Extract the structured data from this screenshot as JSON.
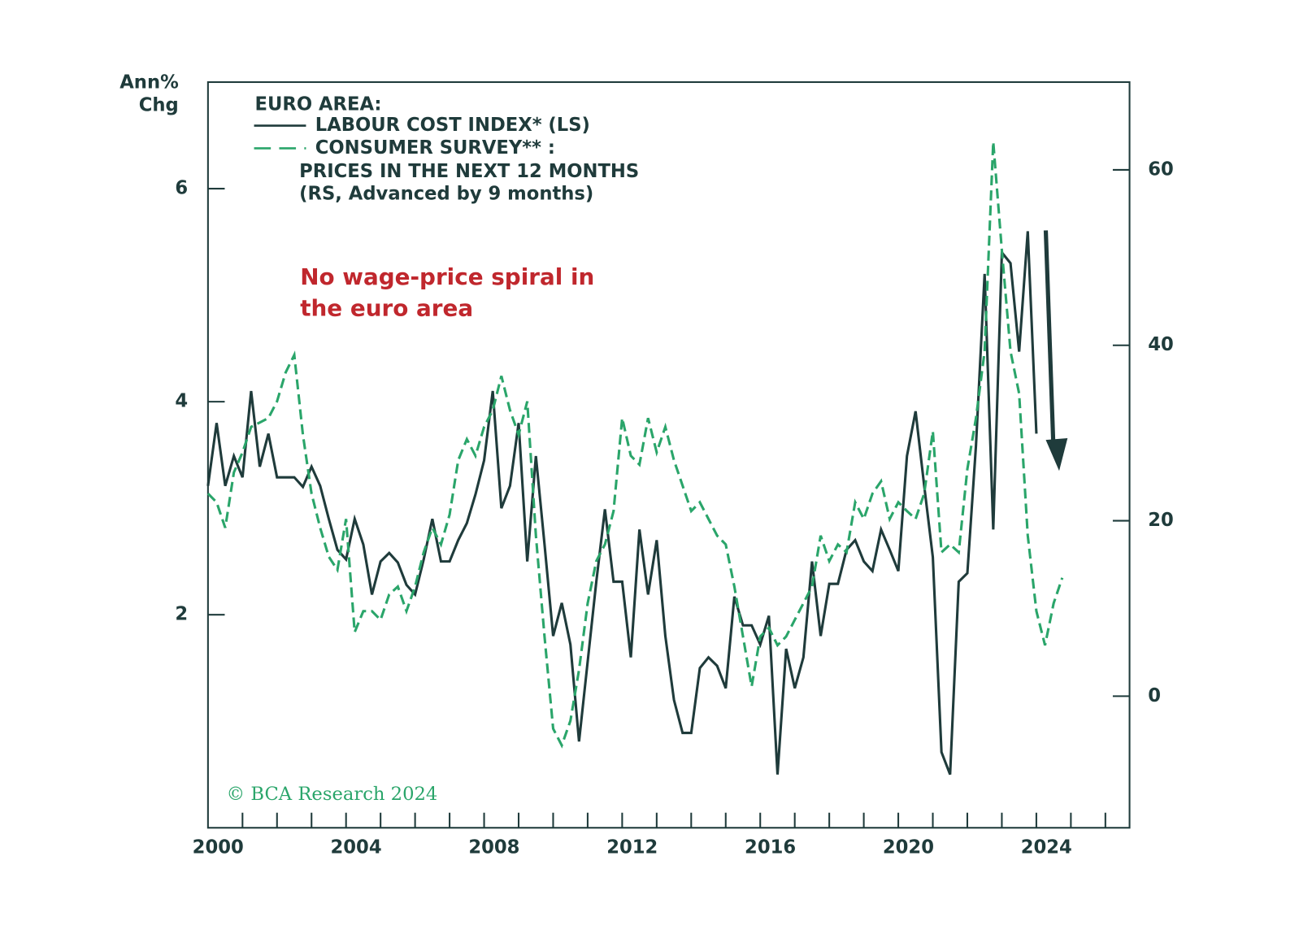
{
  "chart_data": {
    "type": "line",
    "y_label_lines": [
      "Ann%",
      "Chg"
    ],
    "legend_title": "EURO AREA:",
    "legend_extra_lines": [
      "PRICES IN THE NEXT 12 MONTHS",
      "(RS, Advanced by 9 months)"
    ],
    "annotation_lines": [
      "No wage-price spiral in",
      "the euro area"
    ],
    "source": "© BCA Research 2024",
    "xlim": [
      2000,
      2026.7
    ],
    "xticks": [
      2000,
      2004,
      2008,
      2012,
      2016,
      2020,
      2024
    ],
    "xminor_ticks": [
      2001,
      2002,
      2003,
      2004,
      2005,
      2006,
      2007,
      2008,
      2009,
      2010,
      2011,
      2012,
      2013,
      2014,
      2015,
      2016,
      2017,
      2018,
      2019,
      2020,
      2021,
      2022,
      2023,
      2024,
      2025,
      2026
    ],
    "ylim": [
      0,
      7
    ],
    "yticks": [
      2,
      4,
      6
    ],
    "y2lim": [
      -15,
      70
    ],
    "y2ticks": [
      0,
      20,
      40,
      60
    ],
    "series": [
      {
        "name": "LABOUR COST INDEX* (LS)",
        "color": "#1f3b3b",
        "line_style": "solid",
        "axis": "y",
        "x": [
          2000,
          2000.25,
          2000.5,
          2000.75,
          2001,
          2001.25,
          2001.5,
          2001.75,
          2002,
          2002.25,
          2002.5,
          2002.75,
          2003,
          2003.25,
          2003.5,
          2003.75,
          2004,
          2004.25,
          2004.5,
          2004.75,
          2005,
          2005.25,
          2005.5,
          2005.75,
          2006,
          2006.25,
          2006.5,
          2006.75,
          2007,
          2007.25,
          2007.5,
          2007.75,
          2008,
          2008.25,
          2008.5,
          2008.75,
          2009,
          2009.25,
          2009.5,
          2009.75,
          2010,
          2010.25,
          2010.5,
          2010.75,
          2011,
          2011.25,
          2011.5,
          2011.75,
          2012,
          2012.25,
          2012.5,
          2012.75,
          2013,
          2013.25,
          2013.5,
          2013.75,
          2014,
          2014.25,
          2014.5,
          2014.75,
          2015,
          2015.25,
          2015.5,
          2015.75,
          2016,
          2016.25,
          2016.5,
          2016.75,
          2017,
          2017.25,
          2017.5,
          2017.75,
          2018,
          2018.25,
          2018.5,
          2018.75,
          2019,
          2019.25,
          2019.5,
          2019.75,
          2020,
          2020.25,
          2020.5,
          2020.75,
          2021,
          2021.25,
          2021.5,
          2021.75,
          2022,
          2022.25,
          2022.5,
          2022.75,
          2023,
          2023.25,
          2023.5,
          2023.75,
          2024
        ],
        "values": [
          3.21,
          3.8,
          3.21,
          3.49,
          3.29,
          4.1,
          3.39,
          3.7,
          3.29,
          3.29,
          3.29,
          3.2,
          3.39,
          3.21,
          2.9,
          2.61,
          2.52,
          2.9,
          2.66,
          2.19,
          2.5,
          2.58,
          2.49,
          2.28,
          2.19,
          2.52,
          2.9,
          2.5,
          2.5,
          2.7,
          2.86,
          3.13,
          3.45,
          4.1,
          3.0,
          3.21,
          3.8,
          2.5,
          3.49,
          2.66,
          1.8,
          2.11,
          1.72,
          0.81,
          1.56,
          2.31,
          2.99,
          2.31,
          2.31,
          1.6,
          2.8,
          2.19,
          2.7,
          1.8,
          1.2,
          0.89,
          0.89,
          1.5,
          1.6,
          1.52,
          1.31,
          2.17,
          1.9,
          1.9,
          1.72,
          1.99,
          0.5,
          1.68,
          1.31,
          1.6,
          2.5,
          1.8,
          2.29,
          2.29,
          2.61,
          2.7,
          2.5,
          2.41,
          2.8,
          2.61,
          2.41,
          3.49,
          3.91,
          3.21,
          2.54,
          0.71,
          0.5,
          2.31,
          2.39,
          3.59,
          5.2,
          2.8,
          5.4,
          5.3,
          4.47,
          5.6,
          3.7
        ]
      },
      {
        "name": "CONSUMER SURVEY** :",
        "color": "#2aa56a",
        "line_style": "dashed",
        "axis": "y2",
        "x": [
          2000,
          2000.25,
          2000.5,
          2000.75,
          2001,
          2001.25,
          2001.5,
          2001.75,
          2002,
          2002.25,
          2002.5,
          2002.75,
          2003,
          2003.25,
          2003.5,
          2003.75,
          2004,
          2004.25,
          2004.5,
          2004.75,
          2005,
          2005.25,
          2005.5,
          2005.75,
          2006,
          2006.25,
          2006.5,
          2006.75,
          2007,
          2007.25,
          2007.5,
          2007.75,
          2008,
          2008.25,
          2008.5,
          2008.75,
          2009,
          2009.25,
          2009.5,
          2009.75,
          2010,
          2010.25,
          2010.5,
          2010.75,
          2011,
          2011.25,
          2011.5,
          2011.75,
          2012,
          2012.25,
          2012.5,
          2012.75,
          2013,
          2013.25,
          2013.5,
          2013.75,
          2014,
          2014.25,
          2014.5,
          2014.75,
          2015,
          2015.25,
          2015.5,
          2015.75,
          2016,
          2016.25,
          2016.5,
          2016.75,
          2017,
          2017.25,
          2017.5,
          2017.75,
          2018,
          2018.25,
          2018.5,
          2018.75,
          2019,
          2019.25,
          2019.5,
          2019.75,
          2020,
          2020.25,
          2020.5,
          2020.75,
          2021,
          2021.25,
          2021.5,
          2021.75,
          2022,
          2022.25,
          2022.5,
          2022.75,
          2023,
          2023.25,
          2023.5,
          2023.75,
          2024,
          2024.25,
          2024.5,
          2024.75
        ],
        "values": [
          23.1,
          22.1,
          19.2,
          25.5,
          27.8,
          30.7,
          31.2,
          31.7,
          33.6,
          36.9,
          38.9,
          29.8,
          23.1,
          19.2,
          15.9,
          14.4,
          20.2,
          7.3,
          9.7,
          9.7,
          8.7,
          11.6,
          12.5,
          9.7,
          12.5,
          16.4,
          19.2,
          17.3,
          20.7,
          26.9,
          29.3,
          27.4,
          30.7,
          32.6,
          36.5,
          32.6,
          29.8,
          33.6,
          18.3,
          6.8,
          -3.7,
          -5.6,
          -2.8,
          3.0,
          10.6,
          15.4,
          17.3,
          21.1,
          31.7,
          27.4,
          26.4,
          31.7,
          27.8,
          30.7,
          26.9,
          24.0,
          21.1,
          22.1,
          20.2,
          18.3,
          17.3,
          12.5,
          6.8,
          1.1,
          6.8,
          7.8,
          5.8,
          6.8,
          8.7,
          10.6,
          12.5,
          18.3,
          15.4,
          17.3,
          16.4,
          22.1,
          20.2,
          23.1,
          24.5,
          20.2,
          22.1,
          21.1,
          20.2,
          23.1,
          30.2,
          16.4,
          17.3,
          16.4,
          25.9,
          31.7,
          39.3,
          63.2,
          50.8,
          39.3,
          34.5,
          18.3,
          9.7,
          5.8,
          10.6,
          13.5
        ]
      }
    ]
  }
}
